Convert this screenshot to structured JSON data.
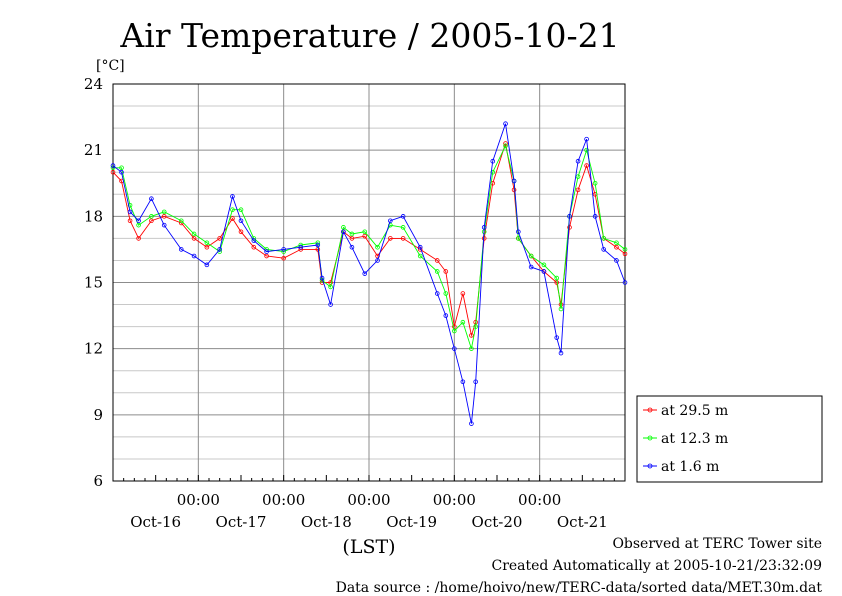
{
  "chart_data": {
    "type": "line",
    "title": "Air Temperature / 2005-10-21",
    "ylabel": "[°C]",
    "xlabel": "(LST)",
    "ylim": [
      6,
      24
    ],
    "yticks": [
      6,
      9,
      12,
      15,
      18,
      21,
      24
    ],
    "xlim": [
      0,
      6
    ],
    "time_ticks": [
      {
        "x": 1,
        "label": "00:00"
      },
      {
        "x": 2,
        "label": "00:00"
      },
      {
        "x": 3,
        "label": "00:00"
      },
      {
        "x": 4,
        "label": "00:00"
      },
      {
        "x": 5,
        "label": "00:00"
      }
    ],
    "date_labels": [
      {
        "x": 0.5,
        "label": "Oct-16"
      },
      {
        "x": 1.5,
        "label": "Oct-17"
      },
      {
        "x": 2.5,
        "label": "Oct-18"
      },
      {
        "x": 3.5,
        "label": "Oct-19"
      },
      {
        "x": 4.5,
        "label": "Oct-20"
      },
      {
        "x": 5.5,
        "label": "Oct-21"
      }
    ],
    "legend_position": "outside-right-bottom",
    "series": [
      {
        "name": "at 29.5 m",
        "color": "#ff0000",
        "x": [
          0,
          0.1,
          0.2,
          0.3,
          0.45,
          0.6,
          0.8,
          0.95,
          1.1,
          1.25,
          1.4,
          1.5,
          1.65,
          1.8,
          2.0,
          2.2,
          2.4,
          2.45,
          2.55,
          2.7,
          2.8,
          2.95,
          3.1,
          3.25,
          3.4,
          3.6,
          3.8,
          3.9,
          4.0,
          4.1,
          4.2,
          4.25,
          4.35,
          4.45,
          4.6,
          4.7,
          4.75,
          4.9,
          5.05,
          5.2,
          5.25,
          5.35,
          5.45,
          5.55,
          5.65,
          5.75,
          5.9,
          6.0
        ],
        "y": [
          20.0,
          19.6,
          17.8,
          17.0,
          17.8,
          18.0,
          17.7,
          17.0,
          16.6,
          17.0,
          17.9,
          17.3,
          16.6,
          16.2,
          16.1,
          16.5,
          16.5,
          15.0,
          15.0,
          17.3,
          17.0,
          17.1,
          16.2,
          17.0,
          17.0,
          16.5,
          16.0,
          15.5,
          13.0,
          14.5,
          12.6,
          13.2,
          17.0,
          19.5,
          21.3,
          19.2,
          17.0,
          16.2,
          15.5,
          15.0,
          14.0,
          17.5,
          19.2,
          20.3,
          19.0,
          17.0,
          16.6,
          16.3
        ]
      },
      {
        "name": "at 12.3 m",
        "color": "#00ff00",
        "x": [
          0,
          0.1,
          0.2,
          0.3,
          0.45,
          0.6,
          0.8,
          0.95,
          1.1,
          1.25,
          1.4,
          1.5,
          1.65,
          1.8,
          2.0,
          2.2,
          2.4,
          2.45,
          2.55,
          2.7,
          2.8,
          2.95,
          3.1,
          3.25,
          3.4,
          3.6,
          3.8,
          3.9,
          4.0,
          4.1,
          4.2,
          4.25,
          4.35,
          4.45,
          4.6,
          4.7,
          4.75,
          4.9,
          5.05,
          5.2,
          5.25,
          5.35,
          5.45,
          5.55,
          5.65,
          5.75,
          5.9,
          6.0
        ],
        "y": [
          20.2,
          20.2,
          18.5,
          17.6,
          18.0,
          18.2,
          17.8,
          17.2,
          16.8,
          16.4,
          18.3,
          18.3,
          17.0,
          16.5,
          16.4,
          16.7,
          16.8,
          15.1,
          14.8,
          17.5,
          17.2,
          17.3,
          16.6,
          17.6,
          17.5,
          16.2,
          15.5,
          14.5,
          12.8,
          13.2,
          12.0,
          13.0,
          17.3,
          20.0,
          21.2,
          19.6,
          17.0,
          16.2,
          15.8,
          15.2,
          13.8,
          18.0,
          19.8,
          21.0,
          19.5,
          17.0,
          16.8,
          16.5
        ]
      },
      {
        "name": "at 1.6 m",
        "color": "#0000ff",
        "x": [
          0,
          0.1,
          0.2,
          0.3,
          0.45,
          0.6,
          0.8,
          0.95,
          1.1,
          1.25,
          1.4,
          1.5,
          1.65,
          1.8,
          2.0,
          2.2,
          2.4,
          2.45,
          2.55,
          2.7,
          2.8,
          2.95,
          3.1,
          3.25,
          3.4,
          3.6,
          3.8,
          3.9,
          4.0,
          4.1,
          4.2,
          4.25,
          4.35,
          4.45,
          4.6,
          4.7,
          4.75,
          4.9,
          5.05,
          5.2,
          5.25,
          5.35,
          5.45,
          5.55,
          5.65,
          5.75,
          5.9,
          6.0
        ],
        "y": [
          20.3,
          20.0,
          18.2,
          17.8,
          18.8,
          17.6,
          16.5,
          16.2,
          15.8,
          16.5,
          18.9,
          17.8,
          16.9,
          16.4,
          16.5,
          16.6,
          16.7,
          15.2,
          14.0,
          17.3,
          16.6,
          15.4,
          16.0,
          17.8,
          18.0,
          16.6,
          14.5,
          13.5,
          12.0,
          10.5,
          8.6,
          10.5,
          17.5,
          20.5,
          22.2,
          19.6,
          17.3,
          15.7,
          15.5,
          12.5,
          11.8,
          18.0,
          20.5,
          21.5,
          18.0,
          16.5,
          16.0,
          15.0
        ]
      }
    ]
  },
  "footer": {
    "observed": "Observed at TERC Tower site",
    "created": "Created Automatically at 2005-10-21/23:32:09",
    "source": "Data source : /home/hoivo/new/TERC-data/sorted  data/MET.30m.dat"
  }
}
